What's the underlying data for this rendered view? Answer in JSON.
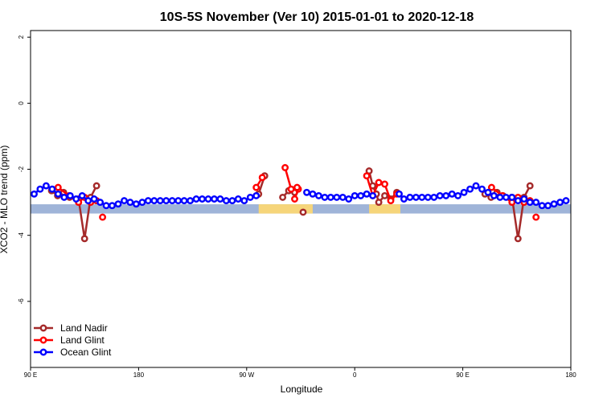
{
  "chart_data": {
    "type": "line",
    "title": "10S-5S November (Ver 10)   2015-01-01 to 2020-12-18",
    "xlabel": "Longitude",
    "ylabel": "XCO2 - MLO trend (ppm)",
    "xlim": [
      90,
      540
    ],
    "ylim": [
      -8,
      2.2
    ],
    "x_ticks": [
      {
        "value": 90,
        "label": "90 E"
      },
      {
        "value": 180,
        "label": "180"
      },
      {
        "value": 270,
        "label": "90 W"
      },
      {
        "value": 360,
        "label": "0"
      },
      {
        "value": 450,
        "label": "90 E"
      },
      {
        "value": 540,
        "label": "180"
      }
    ],
    "y_ticks": [
      {
        "value": 2,
        "label": "2"
      },
      {
        "value": 0,
        "label": "0"
      },
      {
        "value": -2,
        "label": "-2"
      },
      {
        "value": -4,
        "label": "-4"
      },
      {
        "value": -6,
        "label": "-6"
      }
    ],
    "land_strip": {
      "y_center": -3.2,
      "y_height": 0.28,
      "ocean_color": "#9fb4d8",
      "land_color": "#f6d57a",
      "land_segments": [
        [
          280,
          325
        ],
        [
          372,
          398
        ]
      ]
    },
    "legend_position": "bottom-left",
    "series": [
      {
        "name": "Land Nadir",
        "color": "#a52a2a",
        "segments": [
          [
            [
              107.5,
              -2.65
            ],
            [
              112.5,
              -2.8
            ],
            [
              117.5,
              -2.7
            ],
            [
              122.5,
              -2.85
            ],
            [
              130,
              -2.9
            ],
            [
              135,
              -4.1
            ],
            [
              140,
              -2.85
            ],
            [
              145,
              -2.5
            ]
          ],
          [
            [
              280,
              -2.75
            ],
            [
              285,
              -2.2
            ]
          ],
          [
            [
              300,
              -2.85
            ],
            [
              305,
              -2.65
            ],
            [
              310,
              -2.7
            ]
          ],
          [
            [
              317,
              -3.3
            ]
          ],
          [
            [
              372,
              -2.05
            ],
            [
              375,
              -2.5
            ],
            [
              378,
              -2.75
            ],
            [
              380,
              -3.0
            ],
            [
              385,
              -2.8
            ],
            [
              390,
              -2.9
            ],
            [
              395,
              -2.7
            ]
          ],
          [
            [
              468.5,
              -2.75
            ],
            [
              473.5,
              -2.85
            ],
            [
              478.5,
              -2.7
            ],
            [
              483.5,
              -2.8
            ],
            [
              491,
              -2.85
            ],
            [
              496,
              -4.1
            ],
            [
              501,
              -2.85
            ],
            [
              506,
              -2.5
            ]
          ]
        ]
      },
      {
        "name": "Land Glint",
        "color": "#ff0000",
        "segments": [
          [
            [
              113,
              -2.55
            ],
            [
              122,
              -2.8
            ],
            [
              130,
              -3.0
            ],
            [
              135,
              -2.85
            ],
            [
              140,
              -3.0
            ],
            [
              145,
              -2.95
            ]
          ],
          [
            [
              150,
              -3.45
            ]
          ],
          [
            [
              278,
              -2.55
            ],
            [
              283,
              -2.25
            ]
          ],
          [
            [
              310,
              -2.9
            ],
            [
              313,
              -2.6
            ]
          ],
          [
            [
              302,
              -1.95
            ],
            [
              307,
              -2.6
            ],
            [
              312,
              -2.55
            ]
          ],
          [
            [
              370,
              -2.2
            ],
            [
              375,
              -2.8
            ],
            [
              380,
              -2.4
            ],
            [
              385,
              -2.45
            ],
            [
              390,
              -2.95
            ],
            [
              395,
              -2.75
            ]
          ],
          [
            [
              474,
              -2.55
            ],
            [
              483,
              -2.8
            ],
            [
              491,
              -3.0
            ],
            [
              496,
              -2.85
            ],
            [
              501,
              -3.0
            ],
            [
              506,
              -2.95
            ]
          ],
          [
            [
              511,
              -3.45
            ]
          ]
        ]
      },
      {
        "name": "Ocean Glint",
        "color": "#0000ff",
        "segments": [
          [
            [
              93,
              -2.75
            ],
            [
              98,
              -2.6
            ],
            [
              103,
              -2.5
            ],
            [
              108,
              -2.6
            ],
            [
              113,
              -2.75
            ],
            [
              118,
              -2.85
            ],
            [
              123,
              -2.8
            ],
            [
              128,
              -2.9
            ],
            [
              133,
              -2.8
            ],
            [
              138,
              -2.95
            ],
            [
              143,
              -2.9
            ],
            [
              148,
              -3.0
            ],
            [
              153,
              -3.1
            ],
            [
              158,
              -3.1
            ],
            [
              163,
              -3.05
            ],
            [
              168,
              -2.95
            ],
            [
              173,
              -3.0
            ],
            [
              178,
              -3.05
            ],
            [
              183,
              -3.0
            ],
            [
              188,
              -2.95
            ],
            [
              193,
              -2.95
            ],
            [
              198,
              -2.95
            ],
            [
              203,
              -2.95
            ],
            [
              208,
              -2.95
            ],
            [
              213,
              -2.95
            ],
            [
              218,
              -2.95
            ],
            [
              223,
              -2.95
            ],
            [
              228,
              -2.9
            ],
            [
              233,
              -2.9
            ],
            [
              238,
              -2.9
            ],
            [
              243,
              -2.9
            ],
            [
              248,
              -2.9
            ],
            [
              253,
              -2.95
            ],
            [
              258,
              -2.95
            ],
            [
              263,
              -2.9
            ],
            [
              268,
              -2.95
            ],
            [
              273,
              -2.85
            ],
            [
              278,
              -2.8
            ]
          ],
          [
            [
              320,
              -2.7
            ],
            [
              325,
              -2.75
            ],
            [
              330,
              -2.8
            ],
            [
              335,
              -2.85
            ],
            [
              340,
              -2.85
            ],
            [
              345,
              -2.85
            ],
            [
              350,
              -2.85
            ],
            [
              355,
              -2.9
            ],
            [
              360,
              -2.8
            ],
            [
              365,
              -2.8
            ],
            [
              370,
              -2.75
            ],
            [
              375,
              -2.8
            ]
          ],
          [
            [
              397,
              -2.75
            ],
            [
              401,
              -2.9
            ],
            [
              406,
              -2.85
            ],
            [
              411,
              -2.85
            ],
            [
              416,
              -2.85
            ],
            [
              421,
              -2.85
            ],
            [
              426,
              -2.85
            ],
            [
              431,
              -2.8
            ],
            [
              436,
              -2.8
            ],
            [
              441,
              -2.75
            ],
            [
              446,
              -2.8
            ],
            [
              451,
              -2.7
            ],
            [
              456,
              -2.6
            ],
            [
              461,
              -2.5
            ],
            [
              466,
              -2.6
            ],
            [
              471,
              -2.7
            ],
            [
              476,
              -2.8
            ],
            [
              481,
              -2.85
            ],
            [
              486,
              -2.85
            ],
            [
              491,
              -2.85
            ],
            [
              496,
              -2.95
            ],
            [
              501,
              -2.9
            ],
            [
              506,
              -3.0
            ],
            [
              511,
              -3.0
            ],
            [
              516,
              -3.1
            ],
            [
              521,
              -3.1
            ],
            [
              526,
              -3.05
            ],
            [
              531,
              -3.0
            ],
            [
              536,
              -2.95
            ]
          ]
        ]
      }
    ]
  }
}
